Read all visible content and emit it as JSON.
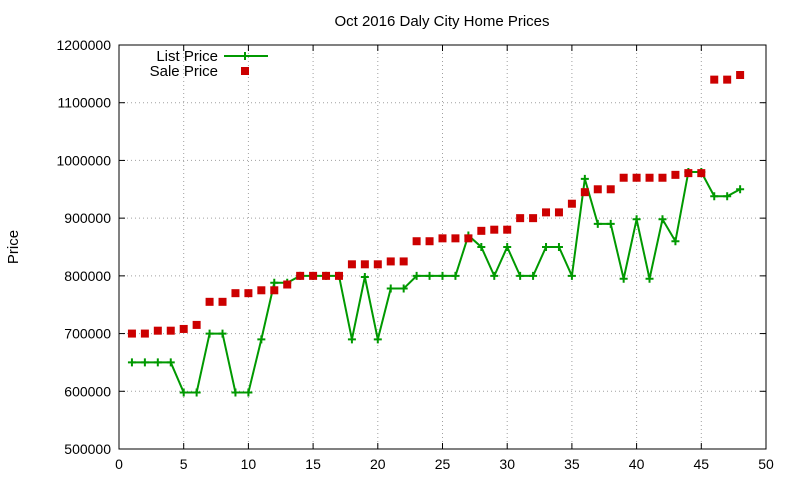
{
  "chart_data": {
    "type": "line",
    "title": "Oct 2016 Daly City Home Prices",
    "xlabel": "",
    "ylabel": "Price",
    "xlim": [
      0,
      50
    ],
    "ylim": [
      500000,
      1200000
    ],
    "x_ticks": [
      0,
      5,
      10,
      15,
      20,
      25,
      30,
      35,
      40,
      45,
      50
    ],
    "y_ticks": [
      500000,
      600000,
      700000,
      800000,
      900000,
      1000000,
      1100000,
      1200000
    ],
    "grid": true,
    "legend_position": "top-left",
    "series": [
      {
        "name": "List Price",
        "style": "line-plus",
        "color": "#009900",
        "x": [
          1,
          2,
          3,
          4,
          5,
          6,
          7,
          8,
          9,
          10,
          11,
          12,
          13,
          14,
          15,
          16,
          17,
          18,
          19,
          20,
          21,
          22,
          23,
          24,
          25,
          26,
          27,
          28,
          29,
          30,
          31,
          32,
          33,
          34,
          35,
          36,
          37,
          38,
          39,
          40,
          41,
          42,
          43,
          44,
          45,
          46,
          47,
          48
        ],
        "y": [
          650000,
          650000,
          650000,
          650000,
          598000,
          598000,
          700000,
          700000,
          598000,
          598000,
          690000,
          788000,
          788000,
          800000,
          800000,
          800000,
          800000,
          690000,
          798000,
          690000,
          778000,
          778000,
          800000,
          800000,
          800000,
          800000,
          870000,
          850000,
          800000,
          850000,
          800000,
          800000,
          850000,
          850000,
          800000,
          968000,
          890000,
          890000,
          795000,
          898000,
          795000,
          898000,
          860000,
          980000,
          980000,
          938000,
          938000,
          950000
        ]
      },
      {
        "name": "Sale Price",
        "style": "points-square",
        "color": "#cc0000",
        "x": [
          1,
          2,
          3,
          4,
          5,
          6,
          7,
          8,
          9,
          10,
          11,
          12,
          13,
          14,
          15,
          16,
          17,
          18,
          19,
          20,
          21,
          22,
          23,
          24,
          25,
          26,
          27,
          28,
          29,
          30,
          31,
          32,
          33,
          34,
          35,
          36,
          37,
          38,
          39,
          40,
          41,
          42,
          43,
          44,
          45,
          46,
          47,
          48
        ],
        "y": [
          700000,
          700000,
          705000,
          705000,
          708000,
          715000,
          755000,
          755000,
          770000,
          770000,
          775000,
          775000,
          785000,
          800000,
          800000,
          800000,
          800000,
          820000,
          820000,
          820000,
          825000,
          825000,
          860000,
          860000,
          865000,
          865000,
          865000,
          878000,
          880000,
          880000,
          900000,
          900000,
          910000,
          910000,
          925000,
          945000,
          950000,
          950000,
          970000,
          970000,
          970000,
          970000,
          975000,
          978000,
          978000,
          1140000,
          1140000,
          1148000
        ]
      }
    ]
  }
}
